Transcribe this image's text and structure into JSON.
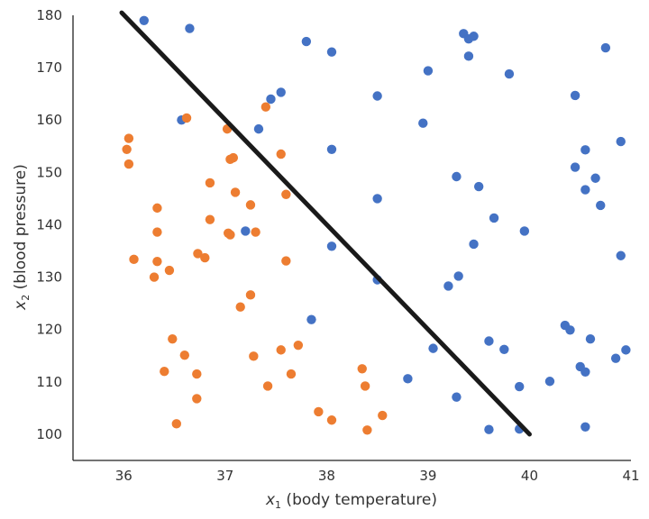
{
  "chart_data": {
    "type": "scatter",
    "title": "",
    "xlabel": {
      "var": "x",
      "sub": "1",
      "text": " (body temperature)"
    },
    "ylabel": {
      "var": "x",
      "sub": "2",
      "text": " (blood pressure)"
    },
    "xlim": [
      35.5,
      41.0
    ],
    "ylim": [
      95,
      180
    ],
    "xticks": [
      36,
      37,
      38,
      39,
      40,
      41
    ],
    "yticks": [
      100,
      110,
      120,
      130,
      140,
      150,
      160,
      170,
      180
    ],
    "grid": false,
    "legend": "none",
    "series": [
      {
        "color": "#4472C4",
        "points": [
          [
            36.2,
            179
          ],
          [
            36.65,
            177.5
          ],
          [
            37.8,
            175
          ],
          [
            38.05,
            173
          ],
          [
            39.35,
            176.5
          ],
          [
            39.4,
            175.5
          ],
          [
            39.45,
            176
          ],
          [
            39.4,
            172.2
          ],
          [
            40.75,
            173.8
          ],
          [
            39.0,
            169.4
          ],
          [
            39.8,
            168.8
          ],
          [
            37.55,
            165.3
          ],
          [
            37.45,
            164
          ],
          [
            38.5,
            164.6
          ],
          [
            40.45,
            164.7
          ],
          [
            36.57,
            160
          ],
          [
            38.95,
            159.4
          ],
          [
            37.33,
            158.3
          ],
          [
            40.9,
            155.9
          ],
          [
            40.55,
            154.3
          ],
          [
            38.05,
            154.4
          ],
          [
            40.45,
            151
          ],
          [
            39.28,
            149.2
          ],
          [
            40.65,
            148.9
          ],
          [
            39.5,
            147.3
          ],
          [
            40.55,
            146.7
          ],
          [
            38.5,
            145
          ],
          [
            40.7,
            143.7
          ],
          [
            39.65,
            141.3
          ],
          [
            37.2,
            138.8
          ],
          [
            39.95,
            138.8
          ],
          [
            39.45,
            136.3
          ],
          [
            38.05,
            135.9
          ],
          [
            40.9,
            134.1
          ],
          [
            39.3,
            130.2
          ],
          [
            38.5,
            129.5
          ],
          [
            39.2,
            128.3
          ],
          [
            37.85,
            121.9
          ],
          [
            40.35,
            120.8
          ],
          [
            40.4,
            119.9
          ],
          [
            39.6,
            117.8
          ],
          [
            40.6,
            118.2
          ],
          [
            39.05,
            116.4
          ],
          [
            39.75,
            116.2
          ],
          [
            40.95,
            116.1
          ],
          [
            40.85,
            114.5
          ],
          [
            40.5,
            112.9
          ],
          [
            40.55,
            111.9
          ],
          [
            38.8,
            110.6
          ],
          [
            40.2,
            110.1
          ],
          [
            39.9,
            109.1
          ],
          [
            39.28,
            107.1
          ],
          [
            39.6,
            100.9
          ],
          [
            39.9,
            101
          ],
          [
            40.55,
            101.4
          ]
        ]
      },
      {
        "color": "#ED7D31",
        "points": [
          [
            36.05,
            156.5
          ],
          [
            36.03,
            154.4
          ],
          [
            36.05,
            151.6
          ],
          [
            36.62,
            160.4
          ],
          [
            37.4,
            162.5
          ],
          [
            37.02,
            158.3
          ],
          [
            37.55,
            153.5
          ],
          [
            37.05,
            152.5
          ],
          [
            37.08,
            152.8
          ],
          [
            36.85,
            148
          ],
          [
            37.1,
            146.2
          ],
          [
            37.6,
            145.8
          ],
          [
            36.33,
            143.2
          ],
          [
            37.25,
            143.8
          ],
          [
            36.85,
            141
          ],
          [
            36.33,
            138.6
          ],
          [
            37.03,
            138.4
          ],
          [
            37.05,
            138.1
          ],
          [
            37.3,
            138.6
          ],
          [
            36.73,
            134.5
          ],
          [
            36.8,
            133.7
          ],
          [
            36.1,
            133.4
          ],
          [
            36.33,
            133
          ],
          [
            37.6,
            133.1
          ],
          [
            36.45,
            131.3
          ],
          [
            36.3,
            130
          ],
          [
            37.25,
            126.6
          ],
          [
            37.15,
            124.3
          ],
          [
            36.48,
            118.2
          ],
          [
            37.72,
            117
          ],
          [
            36.6,
            115.1
          ],
          [
            37.55,
            116.1
          ],
          [
            37.28,
            114.9
          ],
          [
            38.35,
            112.5
          ],
          [
            36.4,
            112
          ],
          [
            36.72,
            111.5
          ],
          [
            37.65,
            111.5
          ],
          [
            37.42,
            109.2
          ],
          [
            38.38,
            109.2
          ],
          [
            36.72,
            106.8
          ],
          [
            37.92,
            104.3
          ],
          [
            38.55,
            103.6
          ],
          [
            36.52,
            102
          ],
          [
            38.05,
            102.7
          ],
          [
            38.4,
            100.8
          ]
        ]
      }
    ],
    "boundary_line": {
      "color": "#1a1a1a",
      "points": [
        [
          35.98,
          180.5
        ],
        [
          40.0,
          100
        ]
      ]
    }
  }
}
